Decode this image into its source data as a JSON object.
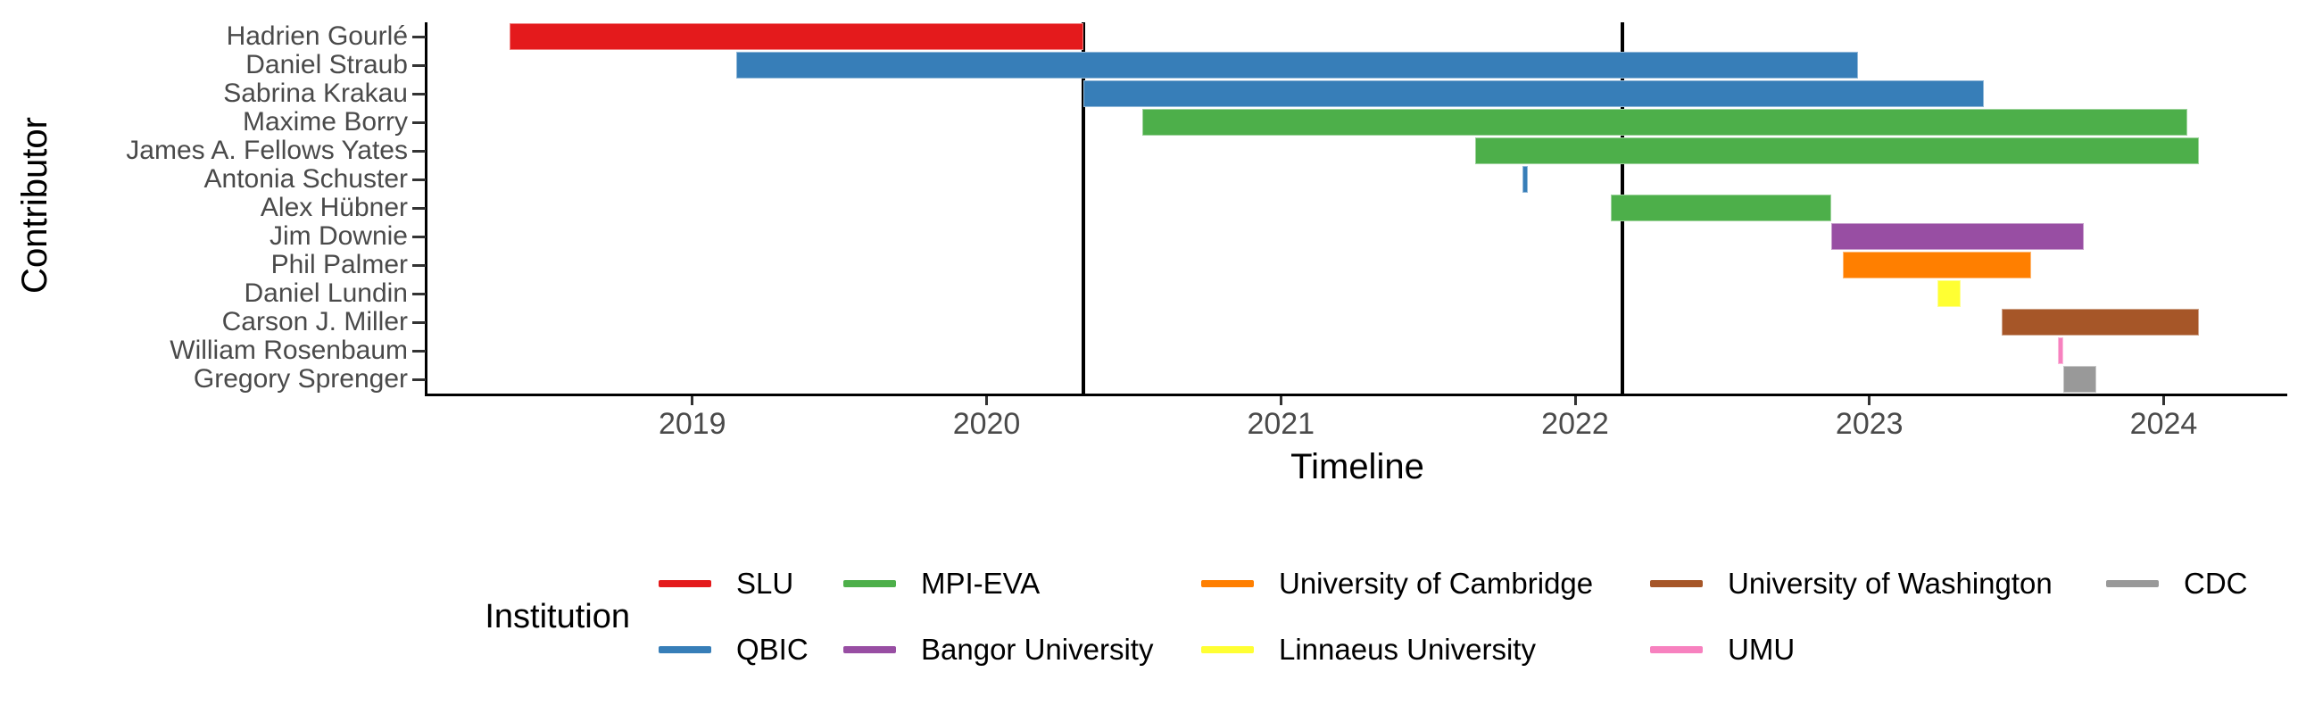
{
  "chart_data": {
    "type": "bar",
    "variant": "gantt-timeline",
    "title": "",
    "xlabel": "Timeline",
    "ylabel": "Contributor",
    "x_domain": [
      2018.1,
      2024.42
    ],
    "x_ticks": [
      2019,
      2020,
      2021,
      2022,
      2023,
      2024
    ],
    "grid": "off",
    "event_lines": [
      2020.33,
      2022.16
    ],
    "contributors": [
      {
        "name": "Hadrien Gourlé",
        "institution": "SLU",
        "start": 2018.38,
        "end": 2020.33
      },
      {
        "name": "Daniel Straub",
        "institution": "QBIC",
        "start": 2019.15,
        "end": 2022.96
      },
      {
        "name": "Sabrina Krakau",
        "institution": "QBIC",
        "start": 2020.33,
        "end": 2023.39
      },
      {
        "name": "Maxime Borry",
        "institution": "MPI-EVA",
        "start": 2020.53,
        "end": 2024.08
      },
      {
        "name": "James A. Fellows Yates",
        "institution": "MPI-EVA",
        "start": 2021.66,
        "end": 2024.12
      },
      {
        "name": "Antonia Schuster",
        "institution": "QBIC",
        "start": 2021.82,
        "end": 2021.84
      },
      {
        "name": "Alex Hübner",
        "institution": "MPI-EVA",
        "start": 2022.12,
        "end": 2022.87
      },
      {
        "name": "Jim Downie",
        "institution": "Bangor University",
        "start": 2022.87,
        "end": 2023.73
      },
      {
        "name": "Phil Palmer",
        "institution": "University of Cambridge",
        "start": 2022.91,
        "end": 2023.55
      },
      {
        "name": "Daniel Lundin",
        "institution": "Linnaeus University",
        "start": 2023.23,
        "end": 2023.31
      },
      {
        "name": "Carson J. Miller",
        "institution": "University of Washington",
        "start": 2023.45,
        "end": 2024.12
      },
      {
        "name": "William Rosenbaum",
        "institution": "UMU",
        "start": 2023.64,
        "end": 2023.66
      },
      {
        "name": "Gregory Sprenger",
        "institution": "CDC",
        "start": 2023.66,
        "end": 2023.77
      }
    ],
    "colors": {
      "SLU": "#E41A1C",
      "QBIC": "#377EB8",
      "MPI-EVA": "#4DAF4A",
      "Bangor University": "#984EA3",
      "University of Cambridge": "#FF7F00",
      "Linnaeus University": "#FFFF33",
      "University of Washington": "#A65628",
      "UMU": "#F781BF",
      "CDC": "#999999"
    },
    "legend": {
      "title": "Institution",
      "position": "bottom",
      "entries": [
        "SLU",
        "QBIC",
        "MPI-EVA",
        "Bangor University",
        "University of Cambridge",
        "Linnaeus University",
        "University of Washington",
        "UMU",
        "CDC"
      ]
    },
    "text_colors": {
      "tick_labels": "#4a4a4a",
      "titles": "#000000"
    }
  }
}
